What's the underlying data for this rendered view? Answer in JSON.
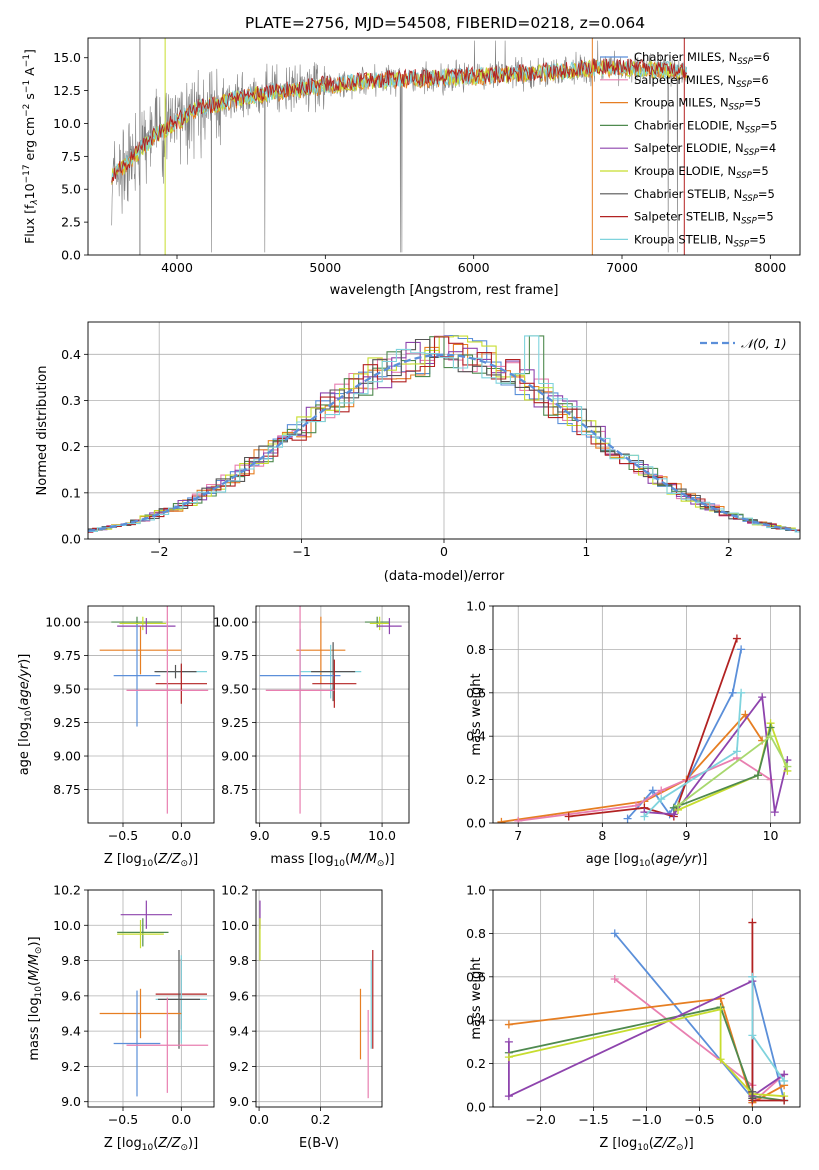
{
  "title": "PLATE=2756, MJD=54508, FIBERID=0218, z=0.064",
  "colors": {
    "chabrier_miles": "#5b8fd9",
    "salpeter_miles": "#e87fb0",
    "kroupa_miles": "#e67e22",
    "chabrier_elodie": "#4f8a4f",
    "salpeter_elodie": "#8e44ad",
    "kroupa_elodie": "#c7dd2f",
    "chabrier_stelib": "#555555",
    "salpeter_stelib": "#b22222",
    "kroupa_stelib": "#7fd3dd",
    "data": "#808080",
    "extra": "#a8d86e"
  },
  "legend_spectrum": [
    {
      "label": "Chabrier MILES, N",
      "sub": "SSP",
      "tail": "=6",
      "color": "#5b8fd9"
    },
    {
      "label": "Salpeter MILES, N",
      "sub": "SSP",
      "tail": "=6",
      "color": "#e87fb0"
    },
    {
      "label": "Kroupa MILES, N",
      "sub": "SSP",
      "tail": "=5",
      "color": "#e67e22"
    },
    {
      "label": "Chabrier ELODIE, N",
      "sub": "SSP",
      "tail": "=5",
      "color": "#4f8a4f"
    },
    {
      "label": "Salpeter ELODIE, N",
      "sub": "SSP",
      "tail": "=4",
      "color": "#8e44ad"
    },
    {
      "label": "Kroupa ELODIE, N",
      "sub": "SSP",
      "tail": "=5",
      "color": "#c7dd2f"
    },
    {
      "label": "Chabrier STELIB, N",
      "sub": "SSP",
      "tail": "=5",
      "color": "#555555"
    },
    {
      "label": "Salpeter STELIB, N",
      "sub": "SSP",
      "tail": "=5",
      "color": "#b22222"
    },
    {
      "label": "Kroupa STELIB, N",
      "sub": "SSP",
      "tail": "=5",
      "color": "#7fd3dd"
    }
  ],
  "chart_data": [
    {
      "type": "line",
      "id": "spectrum",
      "xlabel": "wavelength [Angstrom, rest frame]",
      "ylabel": "Flux [f",
      "ylabel_parts": [
        "Flux [f",
        "λ",
        "10",
        "−17",
        " erg cm",
        "−2",
        " s",
        "−1",
        " A",
        "−1",
        "]"
      ],
      "xlim": [
        3400,
        8200
      ],
      "ylim": [
        0,
        16.5
      ],
      "xticks": [
        4000,
        5000,
        6000,
        7000,
        8000
      ],
      "xtick_labels": [
        "4000",
        "5000",
        "6000",
        "7000",
        "8000"
      ],
      "yticks": [
        0,
        2.5,
        5,
        7.5,
        10,
        12.5,
        15
      ],
      "ytick_labels": [
        "0.0",
        "2.5",
        "5.0",
        "7.5",
        "10.0",
        "12.5",
        "15.0"
      ],
      "continuum": {
        "x": [
          3550,
          3650,
          3750,
          3850,
          3950,
          4050,
          4150,
          4300,
          4450,
          4600,
          4800,
          5000,
          5200,
          5400,
          5600,
          5800,
          6000,
          6200,
          6400,
          6600,
          6800,
          7000,
          7200,
          7400
        ],
        "y": [
          6.0,
          6.8,
          8.0,
          9.0,
          9.8,
          10.5,
          11.2,
          11.6,
          12.0,
          12.3,
          12.6,
          12.9,
          13.1,
          13.3,
          13.4,
          13.5,
          13.6,
          13.7,
          13.8,
          14.0,
          14.2,
          14.2,
          14.1,
          14.0
        ]
      }
    },
    {
      "type": "line",
      "id": "residuals",
      "xlabel": "(data-model)/error",
      "ylabel": "Normed distribution",
      "xlim": [
        -2.5,
        2.5
      ],
      "ylim": [
        0,
        0.47
      ],
      "xticks": [
        -2,
        -1,
        0,
        1,
        2
      ],
      "xtick_labels": [
        "−2",
        "−1",
        "0",
        "1",
        "2"
      ],
      "yticks": [
        0,
        0.1,
        0.2,
        0.3,
        0.4
      ],
      "ytick_labels": [
        "0.0",
        "0.1",
        "0.2",
        "0.3",
        "0.4"
      ],
      "legend": "𝒩(0, 1)",
      "gaussian": {
        "mean": 0,
        "sigma": 1
      }
    },
    {
      "type": "scatter",
      "id": "age_vs_Z",
      "xlabel": "Z [log10(Z/Z⊙)]",
      "ylabel": "age [log10(age/yr)]",
      "xlim": [
        -0.8,
        0.28
      ],
      "ylim": [
        8.5,
        10.12
      ],
      "xticks": [
        -0.5,
        0.0
      ],
      "xtick_labels": [
        "−0.5",
        "0.0"
      ],
      "yticks": [
        8.75,
        9.0,
        9.25,
        9.5,
        9.75,
        10.0
      ],
      "ytick_labels": [
        "8.75",
        "9.00",
        "9.25",
        "9.50",
        "9.75",
        "10.00"
      ],
      "points": [
        {
          "x": -0.38,
          "y": 10.0,
          "xerr": 0.22,
          "yerr": 0.04,
          "color": "#4f8a4f"
        },
        {
          "x": -0.33,
          "y": 9.99,
          "xerr": 0.2,
          "yerr": 0.05,
          "color": "#c7dd2f"
        },
        {
          "x": -0.3,
          "y": 9.97,
          "xerr": 0.25,
          "yerr": 0.06,
          "color": "#8e44ad"
        },
        {
          "x": -0.35,
          "y": 9.79,
          "xerr": 0.35,
          "yerr": 0.18,
          "color": "#e67e22"
        },
        {
          "x": 0.0,
          "y": 9.63,
          "xerr": 0.22,
          "yerr": 0.05,
          "color": "#7fd3dd"
        },
        {
          "x": -0.05,
          "y": 9.63,
          "xerr": 0.18,
          "yerr": 0.05,
          "color": "#555555"
        },
        {
          "x": -0.38,
          "y": 9.6,
          "xerr": 0.2,
          "yerr": 0.38,
          "color": "#5b8fd9"
        },
        {
          "x": 0.0,
          "y": 9.54,
          "xerr": 0.22,
          "yerr": 0.15,
          "color": "#b22222"
        },
        {
          "x": -0.12,
          "y": 9.49,
          "xerr": 0.35,
          "yerr": 0.92,
          "color": "#e87fb0"
        }
      ]
    },
    {
      "type": "scatter",
      "id": "age_vs_mass",
      "xlabel": "mass [log10(M/M⊙)]",
      "ylabel": "",
      "xlim": [
        8.97,
        10.22
      ],
      "ylim": [
        8.5,
        10.12
      ],
      "xticks": [
        9.0,
        9.5,
        10.0
      ],
      "xtick_labels": [
        "9.0",
        "9.5",
        "10.0"
      ],
      "yticks": [
        8.75,
        9.0,
        9.25,
        9.5,
        9.75,
        10.0
      ],
      "ytick_labels": [
        "8.75",
        "9.00",
        "9.25",
        "9.50",
        "9.75",
        "10.00"
      ],
      "points": [
        {
          "x": 9.96,
          "y": 10.0,
          "xerr": 0.1,
          "yerr": 0.04,
          "color": "#4f8a4f"
        },
        {
          "x": 9.98,
          "y": 9.99,
          "xerr": 0.08,
          "yerr": 0.05,
          "color": "#c7dd2f"
        },
        {
          "x": 10.06,
          "y": 9.97,
          "xerr": 0.1,
          "yerr": 0.06,
          "color": "#8e44ad"
        },
        {
          "x": 9.5,
          "y": 9.79,
          "xerr": 0.2,
          "yerr": 0.25,
          "color": "#e67e22"
        },
        {
          "x": 9.58,
          "y": 9.63,
          "xerr": 0.25,
          "yerr": 0.2,
          "color": "#7fd3dd"
        },
        {
          "x": 9.6,
          "y": 9.63,
          "xerr": 0.18,
          "yerr": 0.22,
          "color": "#555555"
        },
        {
          "x": 9.33,
          "y": 9.6,
          "xerr": 0.33,
          "yerr": 0.35,
          "color": "#5b8fd9"
        },
        {
          "x": 9.61,
          "y": 9.54,
          "xerr": 0.18,
          "yerr": 0.18,
          "color": "#b22222"
        },
        {
          "x": 9.33,
          "y": 9.49,
          "xerr": 0.28,
          "yerr": 0.92,
          "color": "#e87fb0"
        }
      ]
    },
    {
      "type": "line",
      "id": "mass_weight_vs_age",
      "xlabel": "age [log10(age/yr)]",
      "ylabel": "mass weight",
      "xlim": [
        6.7,
        10.35
      ],
      "ylim": [
        0,
        1.0
      ],
      "xticks": [
        7,
        8,
        9,
        10
      ],
      "xtick_labels": [
        "7",
        "8",
        "9",
        "10"
      ],
      "yticks": [
        0,
        0.2,
        0.4,
        0.6,
        0.8,
        1.0
      ],
      "ytick_labels": [
        "0.0",
        "0.2",
        "0.4",
        "0.6",
        "0.8",
        "1.0"
      ],
      "series": [
        {
          "color": "#e67e22",
          "x": [
            6.8,
            8.5,
            9.0,
            9.7,
            9.9
          ],
          "y": [
            0.005,
            0.1,
            0.2,
            0.5,
            0.38
          ]
        },
        {
          "color": "#5b8fd9",
          "x": [
            8.3,
            8.6,
            8.8,
            9.55,
            9.65
          ],
          "y": [
            0.02,
            0.15,
            0.04,
            0.6,
            0.8
          ]
        },
        {
          "color": "#e87fb0",
          "x": [
            7.0,
            8.4,
            8.7,
            9.6,
            10.0
          ],
          "y": [
            0.01,
            0.08,
            0.15,
            0.3,
            0.2
          ]
        },
        {
          "color": "#b22222",
          "x": [
            7.6,
            8.5,
            8.85,
            9.6
          ],
          "y": [
            0.03,
            0.07,
            0.03,
            0.85
          ]
        },
        {
          "color": "#8e44ad",
          "x": [
            8.5,
            8.85,
            9.9,
            10.05,
            10.2
          ],
          "y": [
            0.05,
            0.04,
            0.58,
            0.05,
            0.29
          ]
        },
        {
          "color": "#c7dd2f",
          "x": [
            8.9,
            9.85,
            10.0,
            10.2
          ],
          "y": [
            0.06,
            0.22,
            0.46,
            0.24
          ]
        },
        {
          "color": "#4f8a4f",
          "x": [
            8.85,
            9.85,
            10.0
          ],
          "y": [
            0.07,
            0.22,
            0.44
          ]
        },
        {
          "color": "#7fd3dd",
          "x": [
            8.5,
            8.7,
            9.6,
            9.65
          ],
          "y": [
            0.03,
            0.11,
            0.33,
            0.6
          ]
        },
        {
          "color": "#a8d86e",
          "x": [
            8.9,
            10.0,
            10.2
          ],
          "y": [
            0.08,
            0.4,
            0.26
          ]
        }
      ]
    },
    {
      "type": "scatter",
      "id": "mass_vs_Z",
      "xlabel": "Z [log10(Z/Z⊙)]",
      "ylabel": "mass [log10(M/M⊙)]",
      "xlim": [
        -0.8,
        0.28
      ],
      "ylim": [
        8.97,
        10.2
      ],
      "xticks": [
        -0.5,
        0.0
      ],
      "xtick_labels": [
        "−0.5",
        "0.0"
      ],
      "yticks": [
        9.0,
        9.2,
        9.4,
        9.6,
        9.8,
        10.0,
        10.2
      ],
      "ytick_labels": [
        "9.0",
        "9.2",
        "9.4",
        "9.6",
        "9.8",
        "10.0",
        "10.2"
      ],
      "points": [
        {
          "x": -0.3,
          "y": 10.06,
          "xerr": 0.22,
          "yerr": 0.08,
          "color": "#8e44ad"
        },
        {
          "x": -0.33,
          "y": 9.96,
          "xerr": 0.22,
          "yerr": 0.08,
          "color": "#4f8a4f"
        },
        {
          "x": -0.35,
          "y": 9.95,
          "xerr": 0.2,
          "yerr": 0.08,
          "color": "#c7dd2f"
        },
        {
          "x": 0.0,
          "y": 9.61,
          "xerr": 0.22,
          "yerr": 0.2,
          "color": "#b22222"
        },
        {
          "x": 0.0,
          "y": 9.58,
          "xerr": 0.22,
          "yerr": 0.25,
          "color": "#7fd3dd"
        },
        {
          "x": -0.02,
          "y": 9.58,
          "xerr": 0.18,
          "yerr": 0.28,
          "color": "#555555"
        },
        {
          "x": -0.35,
          "y": 9.5,
          "xerr": 0.35,
          "yerr": 0.14,
          "color": "#e67e22"
        },
        {
          "x": -0.38,
          "y": 9.33,
          "xerr": 0.2,
          "yerr": 0.3,
          "color": "#5b8fd9"
        },
        {
          "x": -0.12,
          "y": 9.32,
          "xerr": 0.35,
          "yerr": 0.27,
          "color": "#e87fb0"
        }
      ]
    },
    {
      "type": "scatter",
      "id": "mass_vs_EBV",
      "xlabel": "E(B-V)",
      "ylabel": "",
      "xlim": [
        -0.01,
        0.4
      ],
      "ylim": [
        8.97,
        10.2
      ],
      "xticks": [
        0.0,
        0.2
      ],
      "xtick_labels": [
        "0.0",
        "0.2"
      ],
      "yticks": [
        9.0,
        9.2,
        9.4,
        9.6,
        9.8,
        10.0,
        10.2
      ],
      "ytick_labels": [
        "9.0",
        "9.2",
        "9.4",
        "9.6",
        "9.8",
        "10.0",
        "10.2"
      ],
      "points": [
        {
          "x": 0.003,
          "y": 10.06,
          "xerr": 0,
          "yerr": 0.08,
          "color": "#8e44ad"
        },
        {
          "x": 0.003,
          "y": 9.92,
          "xerr": 0,
          "yerr": 0.12,
          "color": "#c7dd2f"
        },
        {
          "x": 0.33,
          "y": 9.44,
          "xerr": 0,
          "yerr": 0.2,
          "color": "#e67e22"
        },
        {
          "x": 0.355,
          "y": 9.27,
          "xerr": 0,
          "yerr": 0.25,
          "color": "#e87fb0"
        },
        {
          "x": 0.37,
          "y": 9.58,
          "xerr": 0,
          "yerr": 0.28,
          "color": "#b22222"
        },
        {
          "x": 0.365,
          "y": 9.55,
          "xerr": 0,
          "yerr": 0.25,
          "color": "#7fd3dd"
        }
      ]
    },
    {
      "type": "line",
      "id": "mass_weight_vs_Z",
      "xlabel": "Z [log10(Z/Z⊙)]",
      "ylabel": "mass weight",
      "xlim": [
        -2.45,
        0.45
      ],
      "ylim": [
        0,
        1.0
      ],
      "xticks": [
        -2.0,
        -1.5,
        -1.0,
        -0.5,
        0.0
      ],
      "xtick_labels": [
        "−2.0",
        "−1.5",
        "−1.0",
        "−0.5",
        "0.0"
      ],
      "yticks": [
        0,
        0.2,
        0.4,
        0.6,
        0.8,
        1.0
      ],
      "ytick_labels": [
        "0.0",
        "0.2",
        "0.4",
        "0.6",
        "0.8",
        "1.0"
      ],
      "series": [
        {
          "color": "#5b8fd9",
          "x": [
            -1.3,
            0.0,
            0.0,
            0.3
          ],
          "y": [
            0.8,
            0.04,
            0.6,
            0.03
          ]
        },
        {
          "color": "#e87fb0",
          "x": [
            -1.3,
            0.0,
            0.0,
            0.3
          ],
          "y": [
            0.59,
            0.1,
            0.02,
            0.15
          ]
        },
        {
          "color": "#e67e22",
          "x": [
            -2.3,
            -0.3,
            0.0,
            0.3
          ],
          "y": [
            0.38,
            0.5,
            0.02,
            0.1
          ]
        },
        {
          "color": "#4f8a4f",
          "x": [
            -2.3,
            -0.3,
            0.0,
            0.3
          ],
          "y": [
            0.25,
            0.46,
            0.05,
            0.03
          ]
        },
        {
          "color": "#8e44ad",
          "x": [
            -2.3,
            -2.3,
            0.0,
            0.0,
            0.3
          ],
          "y": [
            0.3,
            0.05,
            0.58,
            0.05,
            0.15
          ]
        },
        {
          "color": "#c7dd2f",
          "x": [
            -2.3,
            -0.3,
            -0.3,
            0.0,
            0.3
          ],
          "y": [
            0.23,
            0.45,
            0.22,
            0.06,
            0.05
          ]
        },
        {
          "color": "#b22222",
          "x": [
            0.0,
            0.0,
            0.3
          ],
          "y": [
            0.85,
            0.03,
            0.03
          ]
        },
        {
          "color": "#7fd3dd",
          "x": [
            0.0,
            0.0,
            0.3
          ],
          "y": [
            0.6,
            0.33,
            0.12
          ]
        },
        {
          "color": "#555555",
          "x": [
            0.0,
            0.0
          ],
          "y": [
            0.07,
            0.04
          ]
        }
      ]
    }
  ]
}
